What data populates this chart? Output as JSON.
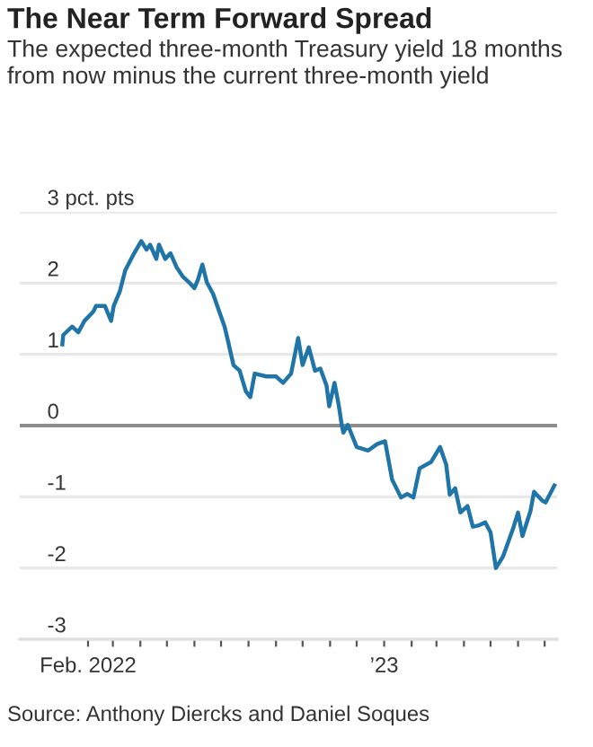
{
  "chart_data": {
    "type": "line",
    "title": "The Near Term Forward Spread",
    "subtitle": "The expected three-month Treasury yield 18 months from now minus the current three-month yield",
    "annotations": [
      "Source: Anthony Diercks and Daniel Soques"
    ],
    "x": [
      "2022-01-03",
      "2022-01-04",
      "2022-01-14",
      "2022-01-21",
      "2022-01-28",
      "2022-02-07",
      "2022-02-10",
      "2022-02-20",
      "2022-02-27",
      "2022-03-02",
      "2022-03-09",
      "2022-03-15",
      "2022-03-25",
      "2022-04-02",
      "2022-04-08",
      "2022-04-12",
      "2022-04-19",
      "2022-04-22",
      "2022-04-29",
      "2022-05-05",
      "2022-05-12",
      "2022-05-19",
      "2022-05-26",
      "2022-06-01",
      "2022-06-05",
      "2022-06-10",
      "2022-06-15",
      "2022-06-22",
      "2022-06-29",
      "2022-07-05",
      "2022-07-09",
      "2022-07-15",
      "2022-07-22",
      "2022-07-29",
      "2022-08-03",
      "2022-08-08",
      "2022-08-21",
      "2022-09-01",
      "2022-09-09",
      "2022-09-18",
      "2022-09-26",
      "2022-10-01",
      "2022-10-08",
      "2022-10-15",
      "2022-10-21",
      "2022-10-28",
      "2022-10-31",
      "2022-11-06",
      "2022-11-11",
      "2022-11-14",
      "2022-11-16",
      "2022-11-21",
      "2022-12-01",
      "2022-12-14",
      "2022-12-24",
      "2023-01-02",
      "2023-01-10",
      "2023-01-20",
      "2023-01-27",
      "2023-02-03",
      "2023-02-10",
      "2023-02-23",
      "2023-03-05",
      "2023-03-12",
      "2023-03-16",
      "2023-03-22",
      "2023-03-28",
      "2023-04-05",
      "2023-04-11",
      "2023-04-18",
      "2023-04-25",
      "2023-05-01",
      "2023-05-07",
      "2023-05-15",
      "2023-05-26",
      "2023-06-01",
      "2023-06-06",
      "2023-06-15",
      "2023-06-19",
      "2023-06-28",
      "2023-07-02",
      "2023-07-12"
    ],
    "series": [
      {
        "color": "#1f74a8",
        "values": [
          1.14,
          1.27,
          1.39,
          1.31,
          1.47,
          1.6,
          1.68,
          1.68,
          1.47,
          1.68,
          1.89,
          2.18,
          2.42,
          2.59,
          2.47,
          2.54,
          2.34,
          2.54,
          2.34,
          2.42,
          2.22,
          2.09,
          2.01,
          1.93,
          2.05,
          2.26,
          2.01,
          1.85,
          1.6,
          1.39,
          1.18,
          0.85,
          0.77,
          0.48,
          0.4,
          0.73,
          0.69,
          0.69,
          0.6,
          0.73,
          1.23,
          0.85,
          1.1,
          0.77,
          0.8,
          0.56,
          0.27,
          0.6,
          0.27,
          0.02,
          -0.1,
          0.01,
          -0.3,
          -0.35,
          -0.26,
          -0.22,
          -0.76,
          -1.01,
          -0.96,
          -1.01,
          -0.6,
          -0.51,
          -0.3,
          -0.55,
          -0.97,
          -0.88,
          -1.22,
          -1.13,
          -1.42,
          -1.4,
          -1.36,
          -1.5,
          -2.0,
          -1.84,
          -1.46,
          -1.22,
          -1.55,
          -1.2,
          -0.93,
          -1.05,
          -1.08,
          -0.84
        ]
      }
    ],
    "xlim": [
      "2021-11-16",
      "2023-07-15"
    ],
    "xticks": [
      {
        "value": "2022-02-01",
        "label": "Feb. 2022"
      },
      {
        "value": "2022-03-01",
        "label": null
      },
      {
        "value": "2022-04-01",
        "label": null
      },
      {
        "value": "2022-05-01",
        "label": null
      },
      {
        "value": "2022-06-01",
        "label": null
      },
      {
        "value": "2022-07-01",
        "label": null
      },
      {
        "value": "2022-08-01",
        "label": null
      },
      {
        "value": "2022-09-01",
        "label": null
      },
      {
        "value": "2022-10-01",
        "label": null
      },
      {
        "value": "2022-11-01",
        "label": null
      },
      {
        "value": "2022-12-01",
        "label": null
      },
      {
        "value": "2023-01-01",
        "label": "’23"
      },
      {
        "value": "2023-02-01",
        "label": null
      },
      {
        "value": "2023-03-01",
        "label": null
      },
      {
        "value": "2023-04-01",
        "label": null
      },
      {
        "value": "2023-05-01",
        "label": null
      },
      {
        "value": "2023-06-01",
        "label": null
      },
      {
        "value": "2023-07-01",
        "label": null
      }
    ],
    "ylim": [
      -3,
      3
    ],
    "yticks": [
      {
        "value": 3,
        "label": "3 pct. pts"
      },
      2,
      1,
      0,
      -1,
      -2,
      -3
    ],
    "grid": "y",
    "ref_lines": [
      {
        "axis": "y",
        "value": 0,
        "color": "#8c8c8c"
      }
    ],
    "legend": false
  }
}
